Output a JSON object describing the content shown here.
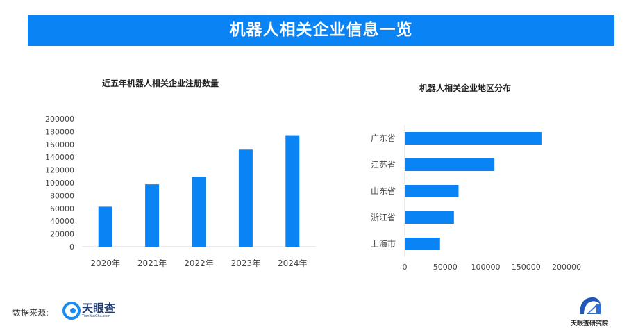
{
  "header": {
    "title": "机器人相关企业信息一览"
  },
  "colors": {
    "accent": "#0a84f5",
    "bar": "#0a84f5"
  },
  "chart_data": [
    {
      "type": "bar",
      "title": "近五年机器人相关企业注册数量",
      "categories": [
        "2020年",
        "2021年",
        "2022年",
        "2023年",
        "2024年"
      ],
      "values": [
        62600,
        97700,
        109600,
        151900,
        174400
      ],
      "yticks": [
        "0",
        "20000",
        "40000",
        "60000",
        "80000",
        "100000",
        "120000",
        "140000",
        "160000",
        "180000",
        "200000"
      ],
      "ylim": [
        0,
        200000
      ],
      "xlabel": "",
      "ylabel": "",
      "grid": false
    },
    {
      "type": "bar",
      "orientation": "horizontal",
      "title": "机器人相关企业地区分布",
      "categories": [
        "广东省",
        "江苏省",
        "山东省",
        "浙江省",
        "上海市"
      ],
      "values": [
        169000,
        110900,
        66500,
        60800,
        43600
      ],
      "xticks": [
        "0",
        "50000",
        "100000",
        "150000",
        "200000"
      ],
      "xlim": [
        0,
        200000
      ],
      "grid": false
    }
  ],
  "footer": {
    "source_label": "数据来源:",
    "source_logo": "天眼查",
    "source_logo_sub": "TianYanCha.com",
    "institute": "天眼查研究院"
  }
}
